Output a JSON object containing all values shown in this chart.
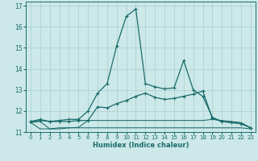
{
  "xlabel": "Humidex (Indice chaleur)",
  "xlim": [
    -0.5,
    23.5
  ],
  "ylim": [
    11.0,
    17.2
  ],
  "yticks": [
    11,
    12,
    13,
    14,
    15,
    16,
    17
  ],
  "xticks": [
    0,
    1,
    2,
    3,
    4,
    5,
    6,
    7,
    8,
    9,
    10,
    11,
    12,
    13,
    14,
    15,
    16,
    17,
    18,
    19,
    20,
    21,
    22,
    23
  ],
  "bg_color": "#cce8e8",
  "grid_color": "#aacece",
  "line_color": "#1a6b6b",
  "curve_peaked_x": [
    0,
    1,
    2,
    3,
    4,
    5,
    6,
    7,
    8,
    9,
    10,
    11,
    12,
    13,
    14,
    15,
    16,
    17,
    18,
    19,
    20,
    21,
    22,
    23
  ],
  "curve_peaked_y": [
    11.5,
    11.55,
    11.5,
    11.55,
    11.6,
    11.6,
    12.0,
    12.85,
    13.3,
    15.1,
    16.5,
    16.85,
    13.3,
    13.15,
    13.05,
    13.1,
    14.4,
    13.0,
    12.7,
    11.7,
    11.5,
    11.45,
    11.4,
    11.2
  ],
  "curve_diag_x": [
    0,
    1,
    2,
    3,
    4,
    5,
    6,
    7,
    8,
    9,
    10,
    11,
    12,
    13,
    14,
    15,
    16,
    17,
    18,
    19,
    20,
    21,
    22,
    23
  ],
  "curve_diag_y": [
    11.5,
    11.6,
    11.5,
    11.5,
    11.5,
    11.55,
    11.55,
    12.2,
    12.15,
    12.35,
    12.5,
    12.7,
    12.85,
    12.65,
    12.55,
    12.6,
    12.7,
    12.8,
    12.95,
    11.65,
    11.5,
    11.45,
    11.4,
    11.2
  ],
  "curve_flat1_x": [
    0,
    1,
    2,
    3,
    4,
    5,
    6,
    7,
    8,
    9,
    10,
    11,
    12,
    13,
    14,
    15,
    16,
    17,
    18,
    19,
    20,
    21,
    22,
    23
  ],
  "curve_flat1_y": [
    11.45,
    11.15,
    11.15,
    11.2,
    11.2,
    11.2,
    11.2,
    11.2,
    11.2,
    11.2,
    11.2,
    11.2,
    11.2,
    11.2,
    11.2,
    11.2,
    11.2,
    11.2,
    11.2,
    11.2,
    11.2,
    11.2,
    11.2,
    11.15
  ],
  "curve_flat2_x": [
    0,
    1,
    2,
    3,
    4,
    5,
    6,
    7,
    8,
    9,
    10,
    11,
    12,
    13,
    14,
    15,
    16,
    17,
    18,
    19,
    20,
    21,
    22,
    23
  ],
  "curve_flat2_y": [
    11.45,
    11.5,
    11.15,
    11.15,
    11.2,
    11.22,
    11.55,
    11.55,
    11.55,
    11.55,
    11.55,
    11.55,
    11.55,
    11.55,
    11.55,
    11.55,
    11.55,
    11.55,
    11.55,
    11.6,
    11.55,
    11.5,
    11.45,
    11.2
  ]
}
